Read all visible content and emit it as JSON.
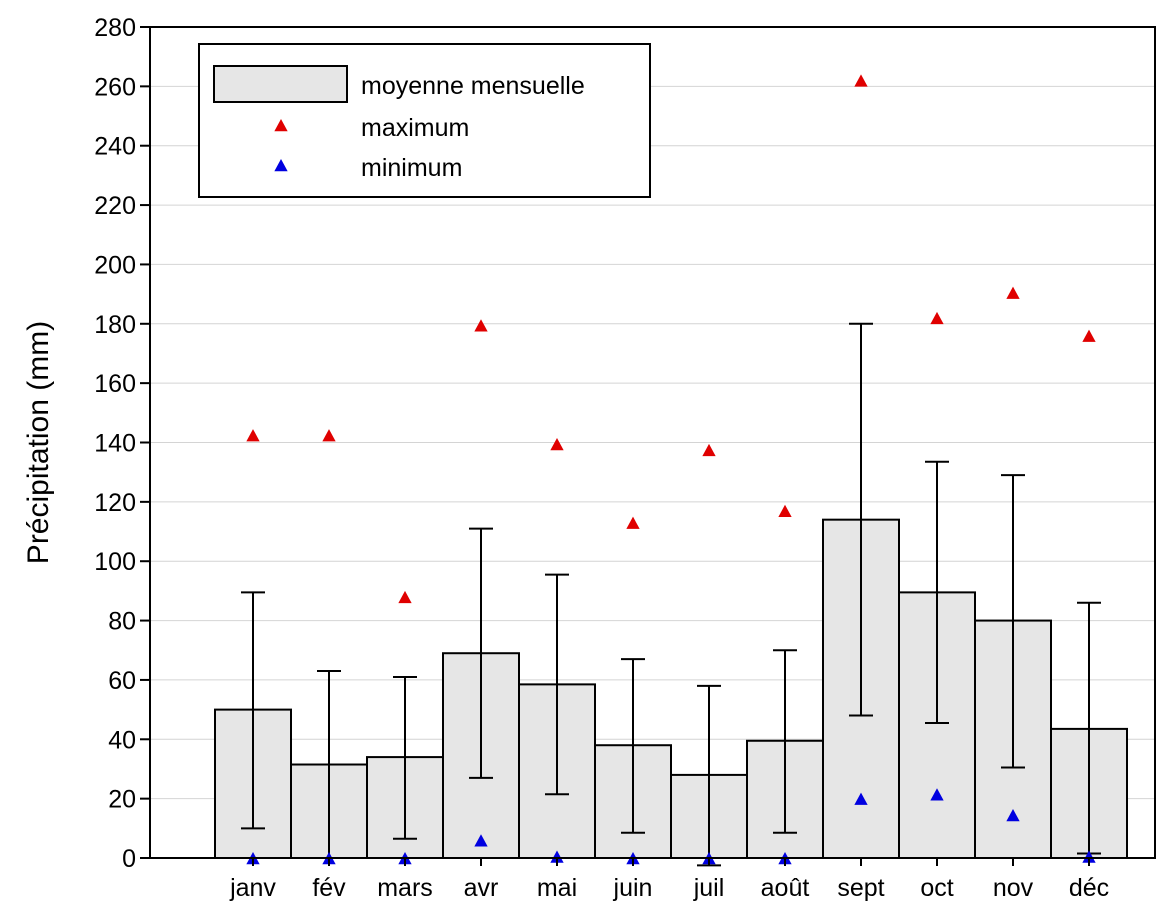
{
  "chart_data": {
    "type": "bar",
    "title": "",
    "xlabel": "",
    "ylabel": "Précipitation (mm)",
    "ylim": [
      0,
      280
    ],
    "yticks": [
      0,
      20,
      40,
      60,
      80,
      100,
      120,
      140,
      160,
      180,
      200,
      220,
      240,
      260,
      280
    ],
    "grid": "horizontal",
    "legend_position": "top-left",
    "categories": [
      "janv",
      "fév",
      "mars",
      "avr",
      "mai",
      "juin",
      "juil",
      "août",
      "sept",
      "oct",
      "nov",
      "déc"
    ],
    "series": [
      {
        "name": "moyenne mensuelle",
        "kind": "bar",
        "color": "#e6e6e6",
        "values": [
          50,
          31.5,
          34,
          69,
          58.5,
          38,
          28,
          39.5,
          114,
          89.5,
          80,
          43.5
        ],
        "error_low": [
          10,
          0,
          6.5,
          27,
          21.5,
          8.5,
          -2.5,
          8.5,
          48,
          45.5,
          30.5,
          1.5
        ],
        "error_high": [
          89.5,
          63,
          61,
          111,
          95.5,
          67,
          58,
          70,
          180,
          133.5,
          129,
          86
        ]
      },
      {
        "name": "maximum",
        "kind": "marker",
        "color": "#e00000",
        "values": [
          142.5,
          142.5,
          88,
          179.5,
          139.5,
          113,
          137.5,
          117,
          262,
          182,
          190.5,
          176
        ]
      },
      {
        "name": "minimum",
        "kind": "marker",
        "color": "#0000e0",
        "values": [
          0,
          0,
          0,
          6,
          0.5,
          0,
          0,
          0,
          20,
          21.5,
          14.5,
          0.5
        ]
      }
    ]
  }
}
